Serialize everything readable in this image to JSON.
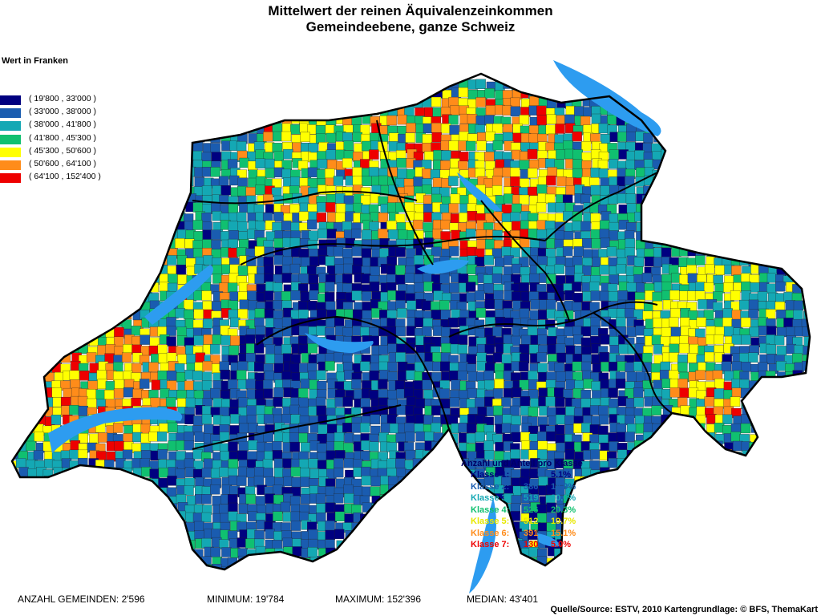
{
  "title": {
    "line1": "Mittelwert der reinen Äquivalenzeinkommen",
    "line2": "Gemeindeebene, ganze Schweiz"
  },
  "legend": {
    "heading": "Wert in Franken",
    "classes": [
      {
        "label": "( 19'800 , 33'000 )",
        "color": "#000080"
      },
      {
        "label": "( 33'000 , 38'000 )",
        "color": "#1a5cb0"
      },
      {
        "label": "( 38'000 , 41'800 )",
        "color": "#14a8b4"
      },
      {
        "label": "( 41'800 , 45'300 )",
        "color": "#10c070"
      },
      {
        "label": "( 45'300 , 50'600 )",
        "color": "#ffff00"
      },
      {
        "label": "( 50'600 , 64'100 )",
        "color": "#ff8c1a"
      },
      {
        "label": "( 64'100 , 152'400 )",
        "color": "#ee0000"
      }
    ]
  },
  "stats_box": {
    "title": "Anzahl und Anteil pro Klasse",
    "rows": [
      {
        "label": "Klasse 1:",
        "count": "132",
        "share": "5.1%",
        "color": "#000080"
      },
      {
        "label": "Klasse 2:",
        "count": "386",
        "share": "14.9%",
        "color": "#1a5cb0"
      },
      {
        "label": "Klasse 3:",
        "count": "519",
        "share": "20.0%",
        "color": "#14a8b4"
      },
      {
        "label": "Klasse 4:",
        "count": "526",
        "share": "20.3%",
        "color": "#10c070"
      },
      {
        "label": "Klasse 5:",
        "count": "512",
        "share": "19.7%",
        "color": "#e8e800"
      },
      {
        "label": "Klasse 6:",
        "count": "391",
        "share": "15.1%",
        "color": "#ff8c1a"
      },
      {
        "label": "Klasse 7:",
        "count": "130",
        "share": "5.0%",
        "color": "#ee0000"
      }
    ]
  },
  "footer": {
    "anzahl": "ANZAHL GEMEINDEN: 2'596",
    "minimum": "MINIMUM: 19'784",
    "maximum": "MAXIMUM: 152'396",
    "median": "MEDIAN: 43'401",
    "source": "Quelle/Source: ESTV, 2010 Kartengrundlage: © BFS, ThemaKart"
  },
  "map_colors": {
    "lake": "#2d9cf0",
    "border": "#000000"
  }
}
